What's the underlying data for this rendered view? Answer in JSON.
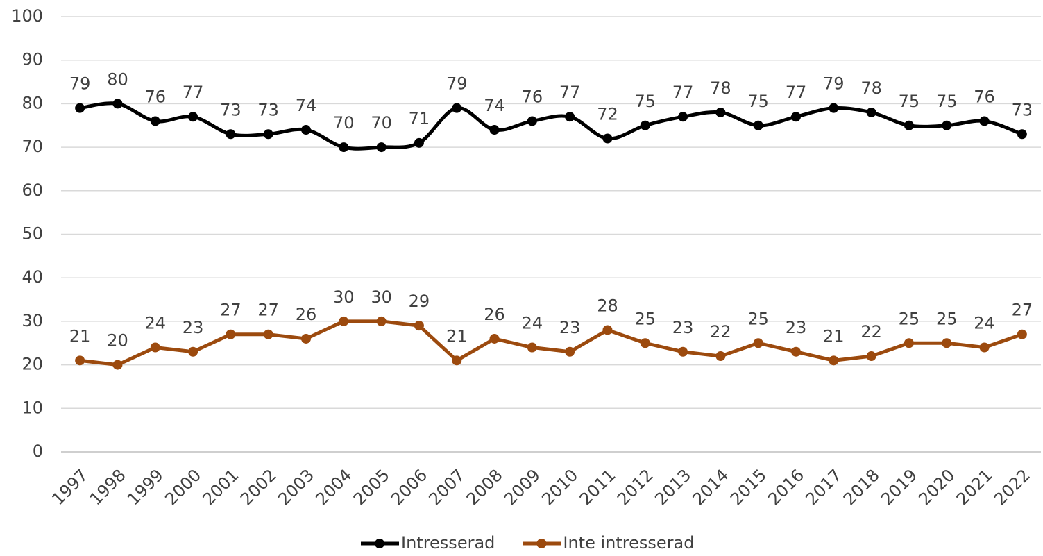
{
  "chart_data": {
    "type": "line",
    "categories": [
      "1997",
      "1998",
      "1999",
      "2000",
      "2001",
      "2002",
      "2003",
      "2004",
      "2005",
      "2006",
      "2007",
      "2008",
      "2009",
      "2010",
      "2011",
      "2012",
      "2013",
      "2014",
      "2015",
      "2016",
      "2017",
      "2018",
      "2019",
      "2020",
      "2021",
      "2022"
    ],
    "series": [
      {
        "name": "Intresserad",
        "color": "#000000",
        "smooth": true,
        "values": [
          79,
          80,
          76,
          77,
          73,
          73,
          74,
          70,
          70,
          71,
          79,
          74,
          76,
          77,
          72,
          75,
          77,
          78,
          75,
          77,
          79,
          78,
          75,
          75,
          76,
          73
        ]
      },
      {
        "name": "Inte intresserad",
        "color": "#9c4a0e",
        "smooth": false,
        "values": [
          21,
          20,
          24,
          23,
          27,
          27,
          26,
          30,
          30,
          29,
          21,
          26,
          24,
          23,
          28,
          25,
          23,
          22,
          25,
          23,
          21,
          22,
          25,
          25,
          24,
          27
        ]
      }
    ],
    "ylim": [
      0,
      100
    ],
    "yticks": [
      0,
      10,
      20,
      30,
      40,
      50,
      60,
      70,
      80,
      90,
      100
    ],
    "grid": true,
    "legend": "bottom"
  }
}
